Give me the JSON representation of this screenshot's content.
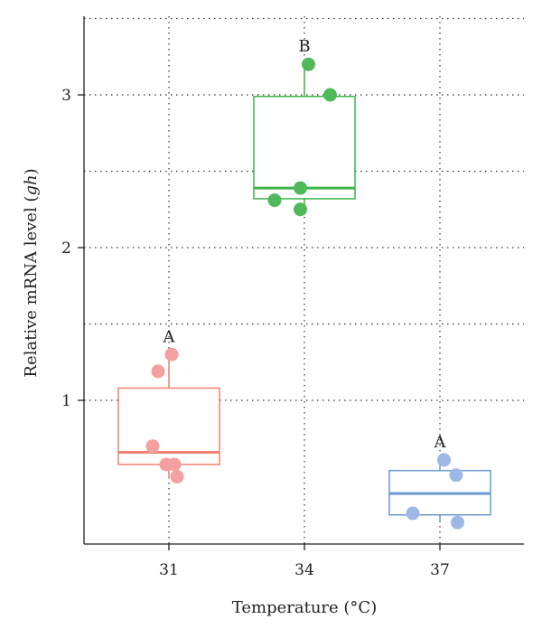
{
  "chart_data": {
    "type": "box",
    "xlabel": "Temperature (°C)",
    "ylabel_prefix": "Relative mRNA level (",
    "ylabel_italic": "gh",
    "ylabel_suffix": ")",
    "ylim": [
      0,
      3.5
    ],
    "yticks": [
      1,
      2,
      3
    ],
    "ygrid": [
      1,
      1.5,
      2,
      2.5,
      3,
      3.5
    ],
    "grid": true,
    "categories": [
      "31",
      "34",
      "37"
    ],
    "groups": [
      {
        "category": "31",
        "color": "#F08070",
        "point_color": "#F4A0A0",
        "box": {
          "q1": 0.58,
          "median": 0.66,
          "q3": 1.08,
          "whisker_low": 0.49,
          "whisker_high": 1.3
        },
        "points": [
          [
            -0.08,
            1.19
          ],
          [
            0.02,
            1.3
          ],
          [
            -0.12,
            0.7
          ],
          [
            -0.02,
            0.58
          ],
          [
            0.04,
            0.58
          ],
          [
            0.06,
            0.5
          ]
        ],
        "significance": "A"
      },
      {
        "category": "34",
        "color": "#3DB54A",
        "point_color": "#4FB85A",
        "box": {
          "q1": 2.32,
          "median": 2.39,
          "q3": 2.99,
          "whisker_low": 2.25,
          "whisker_high": 3.2
        },
        "points": [
          [
            0.03,
            3.2
          ],
          [
            0.19,
            3.0
          ],
          [
            -0.03,
            2.39
          ],
          [
            -0.22,
            2.31
          ],
          [
            -0.03,
            2.25
          ]
        ],
        "significance": "B"
      },
      {
        "category": "37",
        "color": "#6B9AD3",
        "point_color": "#9DB8E4",
        "box": {
          "q1": 0.25,
          "median": 0.39,
          "q3": 0.54,
          "whisker_low": 0.2,
          "whisker_high": 0.61
        },
        "points": [
          [
            0.03,
            0.61
          ],
          [
            0.12,
            0.51
          ],
          [
            -0.2,
            0.26
          ],
          [
            0.13,
            0.2
          ]
        ],
        "significance": "A"
      }
    ]
  }
}
